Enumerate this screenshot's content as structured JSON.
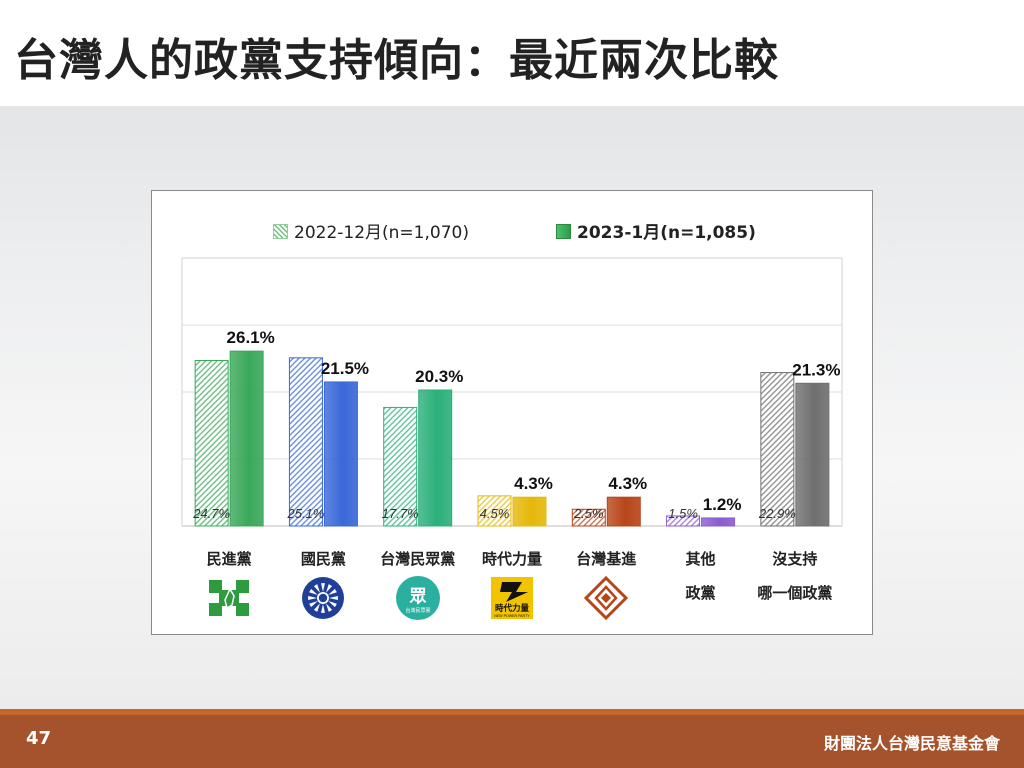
{
  "slide": {
    "title": "台灣人的政黨支持傾向：最近兩次比較",
    "page_number": "47",
    "organization": "財團法人台灣民意基金會"
  },
  "chart_data": {
    "type": "bar",
    "categories": [
      "民進黨",
      "國民黨",
      "台灣民眾黨",
      "時代力量",
      "台灣基進",
      "其他政黨",
      "沒支持哪一個政黨"
    ],
    "category_label_lines": [
      [
        "民進黨"
      ],
      [
        "國民黨"
      ],
      [
        "台灣民眾黨"
      ],
      [
        "時代力量"
      ],
      [
        "台灣基進"
      ],
      [
        "其他",
        "政黨"
      ],
      [
        "沒支持",
        "哪一個政黨"
      ]
    ],
    "series": [
      {
        "name": "2022-12月(n=1,070)",
        "values": [
          24.7,
          25.1,
          17.7,
          4.5,
          2.5,
          1.5,
          22.9
        ],
        "labels": [
          "24.7%",
          "25.1%",
          "17.7%",
          "4.5%",
          "2.5%",
          "1.5%",
          "22.9%"
        ],
        "style": "hatched"
      },
      {
        "name": "2023-1月(n=1,085)",
        "values": [
          26.1,
          21.5,
          20.3,
          4.3,
          4.3,
          1.2,
          21.3
        ],
        "labels": [
          "26.1%",
          "21.5%",
          "20.3%",
          "4.3%",
          "4.3%",
          "1.2%",
          "21.3%"
        ],
        "style": "solid"
      }
    ],
    "colors": [
      "#3aa85a",
      "#3a68d8",
      "#2bb07a",
      "#e5b80a",
      "#b8451a",
      "#8a5cd0",
      "#6f6f6f"
    ],
    "ylim": [
      0,
      40
    ],
    "grid": true,
    "legend_position": "top"
  },
  "party_logos": [
    {
      "name": "dpp-logo-icon",
      "color": "#2e9b3f"
    },
    {
      "name": "kmt-logo-icon",
      "color": "#1f3f99"
    },
    {
      "name": "tpp-logo-icon",
      "color": "#2bb0a0",
      "text": "眾",
      "subtext": "台灣民眾黨"
    },
    {
      "name": "npp-logo-icon",
      "color": "#f2c400",
      "text": "時代力量",
      "subtext": "NEW POWER PARTY"
    },
    {
      "name": "tsp-logo-icon",
      "color": "#b8451a"
    },
    {
      "name": "none",
      "color": ""
    },
    {
      "name": "none",
      "color": ""
    }
  ]
}
